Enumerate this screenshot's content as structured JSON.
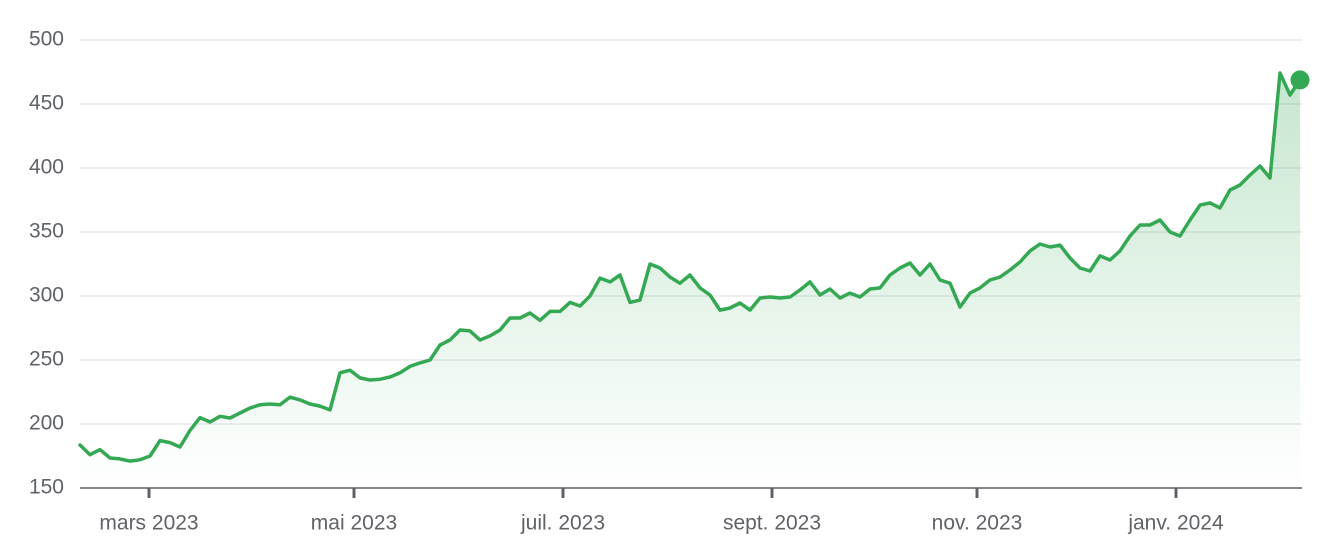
{
  "chart_data": {
    "type": "line",
    "color": "#34a853",
    "grid": true,
    "values": [
      183.6,
      176,
      180,
      173.4,
      172.7,
      171,
      172,
      175,
      187,
      185.5,
      182,
      195,
      205,
      201.6,
      206,
      204.7,
      208.6,
      212.5,
      215,
      215.6,
      215,
      221,
      218.8,
      215.6,
      214,
      211,
      240,
      242,
      236,
      234.4,
      235,
      236.7,
      240,
      245,
      247.7,
      250,
      261.7,
      265.6,
      273.4,
      272.7,
      265.6,
      268.8,
      273.4,
      282.8,
      282.8,
      286.7,
      281,
      288,
      288,
      295,
      292.2,
      300,
      314,
      311,
      316.4,
      295,
      296.9,
      325,
      321.9,
      314.8,
      310,
      316.4,
      306.3,
      300.8,
      289,
      290.6,
      294.5,
      289,
      298.4,
      299.2,
      298.4,
      299.2,
      304.7,
      311,
      300.8,
      305.5,
      298.4,
      302.3,
      299.2,
      305.5,
      306.3,
      316.4,
      321.9,
      325.8,
      316.4,
      325,
      312.5,
      310,
      291.4,
      302.3,
      306.3,
      312.5,
      314.8,
      320.3,
      326.6,
      335.2,
      340.6,
      338.3,
      339.8,
      329.7,
      321.9,
      319.5,
      331.3,
      328.1,
      335.2,
      346.9,
      355.5,
      355.5,
      359.4,
      350,
      346.9,
      359.4,
      371,
      372.7,
      368.8,
      382.8,
      386.7,
      394.5,
      401.6,
      392.2,
      474.2,
      457,
      468.8
    ],
    "xlim": [
      0,
      122
    ],
    "xticks": [
      {
        "value": 6.9,
        "label": "mars 2023"
      },
      {
        "value": 27.4,
        "label": "mai 2023"
      },
      {
        "value": 48.3,
        "label": "juil. 2023"
      },
      {
        "value": 69.2,
        "label": "sept. 2023"
      },
      {
        "value": 89.7,
        "label": "nov. 2023"
      },
      {
        "value": 109.6,
        "label": "janv. 2024"
      }
    ],
    "ylim": [
      150,
      500
    ],
    "yticks": [
      150,
      200,
      250,
      300,
      350,
      400,
      450,
      500
    ]
  }
}
